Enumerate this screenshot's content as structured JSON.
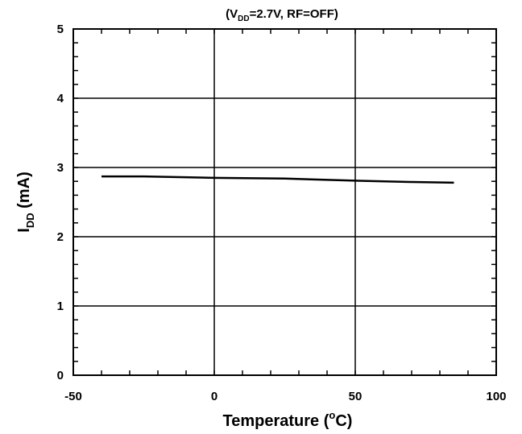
{
  "chart_data": {
    "type": "line",
    "title": {
      "prefix": "(V",
      "sub": "DD",
      "suffix": "=2.7V, RF=OFF)"
    },
    "xlabel": {
      "prefix": "Temperature (",
      "sup": "o",
      "suffix": "C)"
    },
    "ylabel": {
      "main": "I",
      "sub": "DD",
      "suffix": " (mA)"
    },
    "xlim": [
      -50,
      100
    ],
    "ylim": [
      0,
      5
    ],
    "x_ticks": [
      -50,
      0,
      50,
      100
    ],
    "x_tick_labels": [
      "-50",
      "0",
      "50",
      "100"
    ],
    "y_ticks": [
      0,
      1,
      2,
      3,
      4,
      5
    ],
    "y_tick_labels": [
      "0",
      "1",
      "2",
      "3",
      "4",
      "5"
    ],
    "grid": true,
    "series": [
      {
        "color": "#000000",
        "x": [
          -40,
          -25,
          0,
          25,
          50,
          70,
          85
        ],
        "y": [
          2.87,
          2.87,
          2.85,
          2.84,
          2.81,
          2.79,
          2.78
        ]
      }
    ]
  }
}
